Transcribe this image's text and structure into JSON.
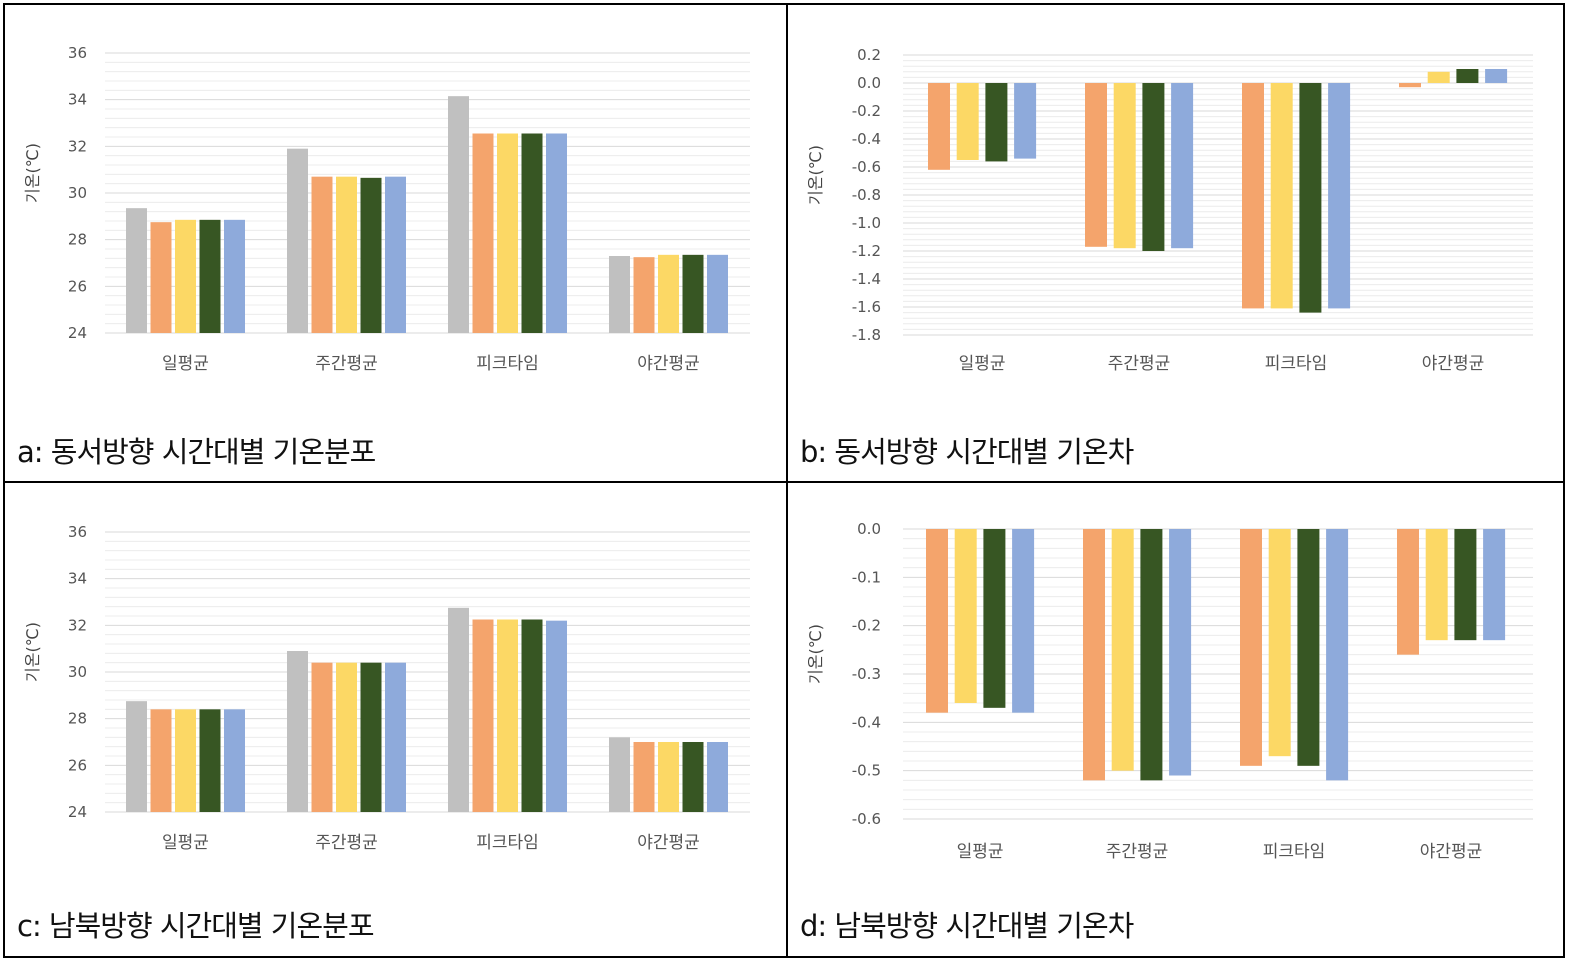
{
  "colors": {
    "gray": "#c0c0c0",
    "orange": "#f4a46c",
    "yellow": "#fcd865",
    "darkgreen": "#375623",
    "blue": "#8eaadb",
    "grid": "#d9d9d9",
    "neg_tick": "#e02020",
    "tick": "#555555"
  },
  "panels": [
    {
      "caption": "a: 동서방향 시간대별 기온분포"
    },
    {
      "caption": "b: 동서방향 시간대별 기온차"
    },
    {
      "caption": "c: 남북방향 시간대별 기온분포"
    },
    {
      "caption": "d: 남북방향 시간대별 기온차"
    }
  ],
  "chart_data": [
    {
      "type": "bar",
      "ylabel": "기온(℃)",
      "categories": [
        "일평균",
        "주간평균",
        "피크타임",
        "야간평균"
      ],
      "ylim": [
        24,
        36
      ],
      "yticks": [
        24,
        26,
        28,
        30,
        32,
        34,
        36
      ],
      "ytick_labels": [
        "24",
        "26",
        "28",
        "30",
        "32",
        "34",
        "36"
      ],
      "grid": true,
      "series": [
        {
          "color": "#c0c0c0",
          "values": [
            29.35,
            31.9,
            34.15,
            27.3
          ]
        },
        {
          "color": "#f4a46c",
          "values": [
            28.75,
            30.7,
            32.55,
            27.25
          ]
        },
        {
          "color": "#fcd865",
          "values": [
            28.85,
            30.7,
            32.55,
            27.35
          ]
        },
        {
          "color": "#375623",
          "values": [
            28.85,
            30.65,
            32.55,
            27.35
          ]
        },
        {
          "color": "#8eaadb",
          "values": [
            28.85,
            30.7,
            32.55,
            27.35
          ]
        }
      ]
    },
    {
      "type": "bar",
      "ylabel": "기온(℃)",
      "categories": [
        "일평균",
        "주간평균",
        "피크타임",
        "야간평균"
      ],
      "ylim": [
        -1.8,
        0.2
      ],
      "yticks": [
        -1.8,
        -1.6,
        -1.4,
        -1.2,
        -1.0,
        -0.8,
        -0.6,
        -0.4,
        -0.2,
        0.0,
        0.2
      ],
      "ytick_labels": [
        "-1.8",
        "-1.6",
        "-1.4",
        "-1.2",
        "-1.0",
        "-0.8",
        "-0.6",
        "-0.4",
        "-0.2",
        "0.0",
        "0.2"
      ],
      "grid": true,
      "series": [
        {
          "color": "#f4a46c",
          "values": [
            -0.62,
            -1.17,
            -1.61,
            -0.03
          ]
        },
        {
          "color": "#fcd865",
          "values": [
            -0.55,
            -1.18,
            -1.61,
            0.08
          ]
        },
        {
          "color": "#375623",
          "values": [
            -0.56,
            -1.2,
            -1.64,
            0.1
          ]
        },
        {
          "color": "#8eaadb",
          "values": [
            -0.54,
            -1.18,
            -1.61,
            0.1
          ]
        }
      ]
    },
    {
      "type": "bar",
      "ylabel": "기온(℃)",
      "categories": [
        "일평균",
        "주간평균",
        "피크타임",
        "야간평균"
      ],
      "ylim": [
        24,
        36
      ],
      "yticks": [
        24,
        26,
        28,
        30,
        32,
        34,
        36
      ],
      "ytick_labels": [
        "24",
        "26",
        "28",
        "30",
        "32",
        "34",
        "36"
      ],
      "grid": true,
      "series": [
        {
          "color": "#c0c0c0",
          "values": [
            28.75,
            30.9,
            32.75,
            27.2
          ]
        },
        {
          "color": "#f4a46c",
          "values": [
            28.4,
            30.4,
            32.25,
            27.0
          ]
        },
        {
          "color": "#fcd865",
          "values": [
            28.4,
            30.4,
            32.25,
            27.0
          ]
        },
        {
          "color": "#375623",
          "values": [
            28.4,
            30.4,
            32.25,
            27.0
          ]
        },
        {
          "color": "#8eaadb",
          "values": [
            28.4,
            30.4,
            32.2,
            27.0
          ]
        }
      ]
    },
    {
      "type": "bar",
      "ylabel": "기온(℃)",
      "categories": [
        "일평균",
        "주간평균",
        "피크타임",
        "야간평균"
      ],
      "ylim": [
        -0.6,
        0.0
      ],
      "yticks": [
        -0.6,
        -0.5,
        -0.4,
        -0.3,
        -0.2,
        -0.1,
        0.0
      ],
      "ytick_labels": [
        "-0.6",
        "-0.5",
        "-0.4",
        "-0.3",
        "-0.2",
        "-0.1",
        "0.0"
      ],
      "grid": true,
      "series": [
        {
          "color": "#f4a46c",
          "values": [
            -0.38,
            -0.52,
            -0.49,
            -0.26
          ]
        },
        {
          "color": "#fcd865",
          "values": [
            -0.36,
            -0.5,
            -0.47,
            -0.23
          ]
        },
        {
          "color": "#375623",
          "values": [
            -0.37,
            -0.52,
            -0.49,
            -0.23
          ]
        },
        {
          "color": "#8eaadb",
          "values": [
            -0.38,
            -0.51,
            -0.52,
            -0.23
          ]
        }
      ]
    }
  ]
}
